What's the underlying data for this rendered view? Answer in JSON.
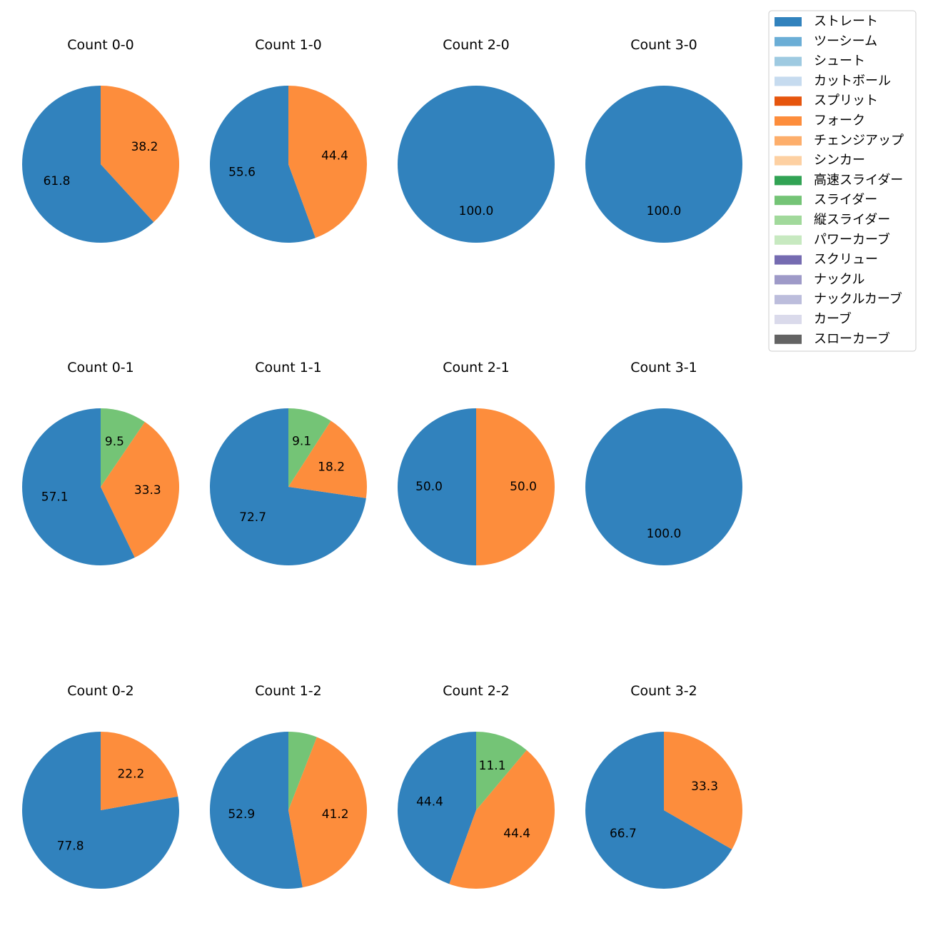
{
  "chart_data": {
    "type": "pie",
    "colors": {
      "ストレート": "#3182bd",
      "ツーシーム": "#6baed6",
      "シュート": "#9ecae1",
      "カットボール": "#c6dbef",
      "スプリット": "#e6550d",
      "フォーク": "#fd8d3c",
      "チェンジアップ": "#fdae6b",
      "シンカー": "#fdd0a2",
      "高速スライダー": "#31a354",
      "スライダー": "#74c476",
      "縦スライダー": "#a1d99b",
      "パワーカーブ": "#c7e9c0",
      "スクリュー": "#756bb1",
      "ナックル": "#9e9ac8",
      "ナックルカーブ": "#bcbddc",
      "カーブ": "#dadaeb",
      "スローカーブ": "#636363"
    },
    "legend": {
      "position": "top-right",
      "entries": [
        "ストレート",
        "ツーシーム",
        "シュート",
        "カットボール",
        "スプリット",
        "フォーク",
        "チェンジアップ",
        "シンカー",
        "高速スライダー",
        "スライダー",
        "縦スライダー",
        "パワーカーブ",
        "スクリュー",
        "ナックル",
        "ナックルカーブ",
        "カーブ",
        "スローカーブ"
      ]
    },
    "pies": [
      {
        "title": "Count 0-0",
        "slices": [
          {
            "label": "ストレート",
            "value": 61.8
          },
          {
            "label": "フォーク",
            "value": 38.2
          }
        ]
      },
      {
        "title": "Count 1-0",
        "slices": [
          {
            "label": "ストレート",
            "value": 55.6
          },
          {
            "label": "フォーク",
            "value": 44.4
          }
        ]
      },
      {
        "title": "Count 2-0",
        "slices": [
          {
            "label": "ストレート",
            "value": 100.0
          }
        ]
      },
      {
        "title": "Count 3-0",
        "slices": [
          {
            "label": "ストレート",
            "value": 100.0
          }
        ]
      },
      {
        "title": "Count 0-1",
        "slices": [
          {
            "label": "ストレート",
            "value": 57.1
          },
          {
            "label": "フォーク",
            "value": 33.3
          },
          {
            "label": "スライダー",
            "value": 9.5
          }
        ]
      },
      {
        "title": "Count 1-1",
        "slices": [
          {
            "label": "ストレート",
            "value": 72.7
          },
          {
            "label": "フォーク",
            "value": 18.2
          },
          {
            "label": "スライダー",
            "value": 9.1
          }
        ]
      },
      {
        "title": "Count 2-1",
        "slices": [
          {
            "label": "ストレート",
            "value": 50.0
          },
          {
            "label": "フォーク",
            "value": 50.0
          }
        ]
      },
      {
        "title": "Count 3-1",
        "slices": [
          {
            "label": "ストレート",
            "value": 100.0
          }
        ]
      },
      {
        "title": "Count 0-2",
        "slices": [
          {
            "label": "ストレート",
            "value": 77.8
          },
          {
            "label": "フォーク",
            "value": 22.2
          }
        ]
      },
      {
        "title": "Count 1-2",
        "slices": [
          {
            "label": "ストレート",
            "value": 52.9
          },
          {
            "label": "フォーク",
            "value": 41.2
          },
          {
            "label": "スライダー",
            "value": 5.9,
            "show_label": false
          }
        ]
      },
      {
        "title": "Count 2-2",
        "slices": [
          {
            "label": "ストレート",
            "value": 44.4
          },
          {
            "label": "フォーク",
            "value": 44.4
          },
          {
            "label": "スライダー",
            "value": 11.1
          }
        ]
      },
      {
        "title": "Count 3-2",
        "slices": [
          {
            "label": "ストレート",
            "value": 66.7
          },
          {
            "label": "フォーク",
            "value": 33.3
          }
        ]
      }
    ]
  }
}
